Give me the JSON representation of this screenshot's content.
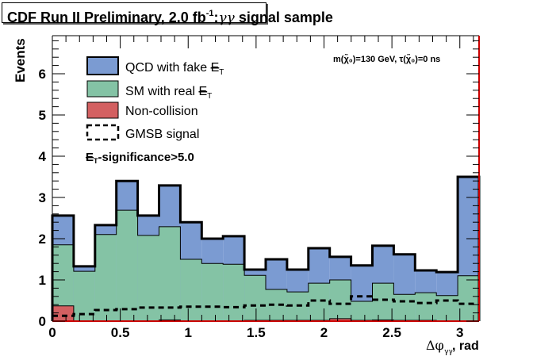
{
  "chart_data": {
    "type": "bar",
    "subtype": "stacked-histogram",
    "title": {
      "main": "CDF Run II Preliminary, 2.0 fb",
      "superscript": "-1",
      "suffix": ":",
      "greek": "γγ",
      "tail": " signal sample"
    },
    "xlabel": "Δφ",
    "xlabel_sub": "γγ",
    "xlabel_unit": ", rad",
    "ylabel": "Events",
    "xlim": [
      0,
      3.1416
    ],
    "ylim": [
      0,
      6.8
    ],
    "xticks": [
      0,
      0.5,
      1,
      1.5,
      2,
      2.5,
      3
    ],
    "xtick_labels": [
      "0",
      "0.5",
      "1",
      "1.5",
      "2",
      "2.5",
      "3"
    ],
    "yticks": [
      0,
      1,
      2,
      3,
      4,
      5,
      6
    ],
    "ytick_labels": [
      "0",
      "1",
      "2",
      "3",
      "4",
      "5",
      "6"
    ],
    "n_bins": 20,
    "bin_edges_start": 0,
    "bin_width": 0.15708,
    "stack_totals": {
      "qcd_total": [
        2.56,
        1.33,
        2.33,
        3.4,
        2.56,
        3.29,
        2.4,
        2.0,
        2.06,
        1.25,
        1.5,
        1.25,
        1.77,
        1.56,
        1.35,
        1.83,
        1.62,
        1.23,
        1.19,
        3.5
      ],
      "sm_total": [
        1.85,
        1.21,
        2.1,
        2.69,
        2.08,
        2.29,
        1.5,
        1.4,
        1.38,
        1.11,
        0.77,
        0.71,
        0.92,
        1.0,
        0.48,
        0.92,
        0.65,
        0.69,
        0.62,
        1.1
      ],
      "noncollision": [
        0.37,
        0.01,
        0.01,
        0.01,
        0.01,
        0.03,
        0.01,
        0.01,
        0.01,
        0.02,
        0.02,
        0.02,
        0.02,
        0.06,
        0.02,
        0.03,
        0.02,
        0.02,
        0.01,
        0.01
      ]
    },
    "gmsb_signal": [
      0.13,
      0.17,
      0.27,
      0.29,
      0.33,
      0.33,
      0.35,
      0.35,
      0.34,
      0.38,
      0.4,
      0.38,
      0.5,
      0.42,
      0.6,
      0.52,
      0.48,
      0.44,
      0.5,
      0.42
    ],
    "legend": [
      {
        "label": "QCD with fake ",
        "met": "E",
        "sub": "T",
        "color": "#7b9bd2",
        "style": "fill"
      },
      {
        "label": "SM with real ",
        "met": "E",
        "sub": "T",
        "color": "#84c3a5",
        "style": "fill"
      },
      {
        "label": "Non-collision",
        "color": "#d36061",
        "style": "fill"
      },
      {
        "label": "GMSB signal",
        "color": "#000000",
        "style": "dashed"
      }
    ],
    "legend_position": "top-left",
    "annotations": {
      "cut": {
        "met": "E",
        "sub": "T",
        "text": "-significance>5.0"
      },
      "model": "m(χ̃₀)=130 GeV, τ(χ̃₀)=0 ns"
    },
    "grid": false,
    "colors": {
      "qcd": "#7b9bd2",
      "sm": "#84c3a5",
      "noncollision": "#d36061",
      "frame_right": "#cc0000"
    }
  }
}
